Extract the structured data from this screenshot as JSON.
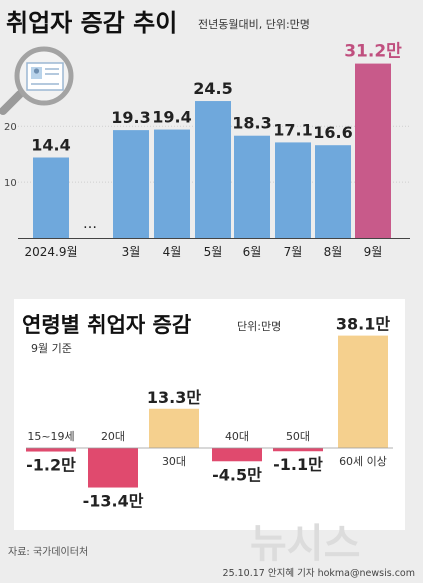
{
  "chart_data": [
    {
      "type": "bar",
      "title": "취업자 증감 추이",
      "subtitle": "전년동월대비, 단위:만명",
      "y_ticks": [
        "10",
        "20"
      ],
      "categories": [
        "2024.9월",
        "…",
        "3월",
        "4월",
        "5월",
        "6월",
        "7월",
        "8월",
        "9월"
      ],
      "values": [
        14.4,
        null,
        19.3,
        19.4,
        24.5,
        18.3,
        17.1,
        16.6,
        31.2
      ],
      "value_labels": [
        "14.4",
        "",
        "19.3",
        "19.4",
        "24.5",
        "18.3",
        "17.1",
        "16.6",
        "31.2만"
      ],
      "highlight_index": 8,
      "colors": {
        "bar": "#6fa8dc",
        "highlight": "#c85a8a",
        "highlight_text": "#c0507f"
      },
      "ylim": [
        0,
        34
      ]
    },
    {
      "type": "bar",
      "title": "연령별 취업자 증감",
      "unit": "단위:만명",
      "note": "9월 기준",
      "categories": [
        "15~19세",
        "20대",
        "30대",
        "40대",
        "50대",
        "60세 이상"
      ],
      "values": [
        -1.2,
        -13.4,
        13.3,
        -4.5,
        -1.1,
        38.1
      ],
      "value_labels": [
        "-1.2만",
        "-13.4만",
        "13.3만",
        "-4.5만",
        "-1.1만",
        "38.1만"
      ],
      "colors": {
        "negative": "#e04a6e",
        "positive": "#f5d08e"
      },
      "ylim": [
        -15,
        40
      ]
    }
  ],
  "footer": {
    "source": "자료: 국가데이터처",
    "credit": "25.10.17 안지혜 기자 hokma@newsis.com",
    "watermark": "뉴시스"
  }
}
